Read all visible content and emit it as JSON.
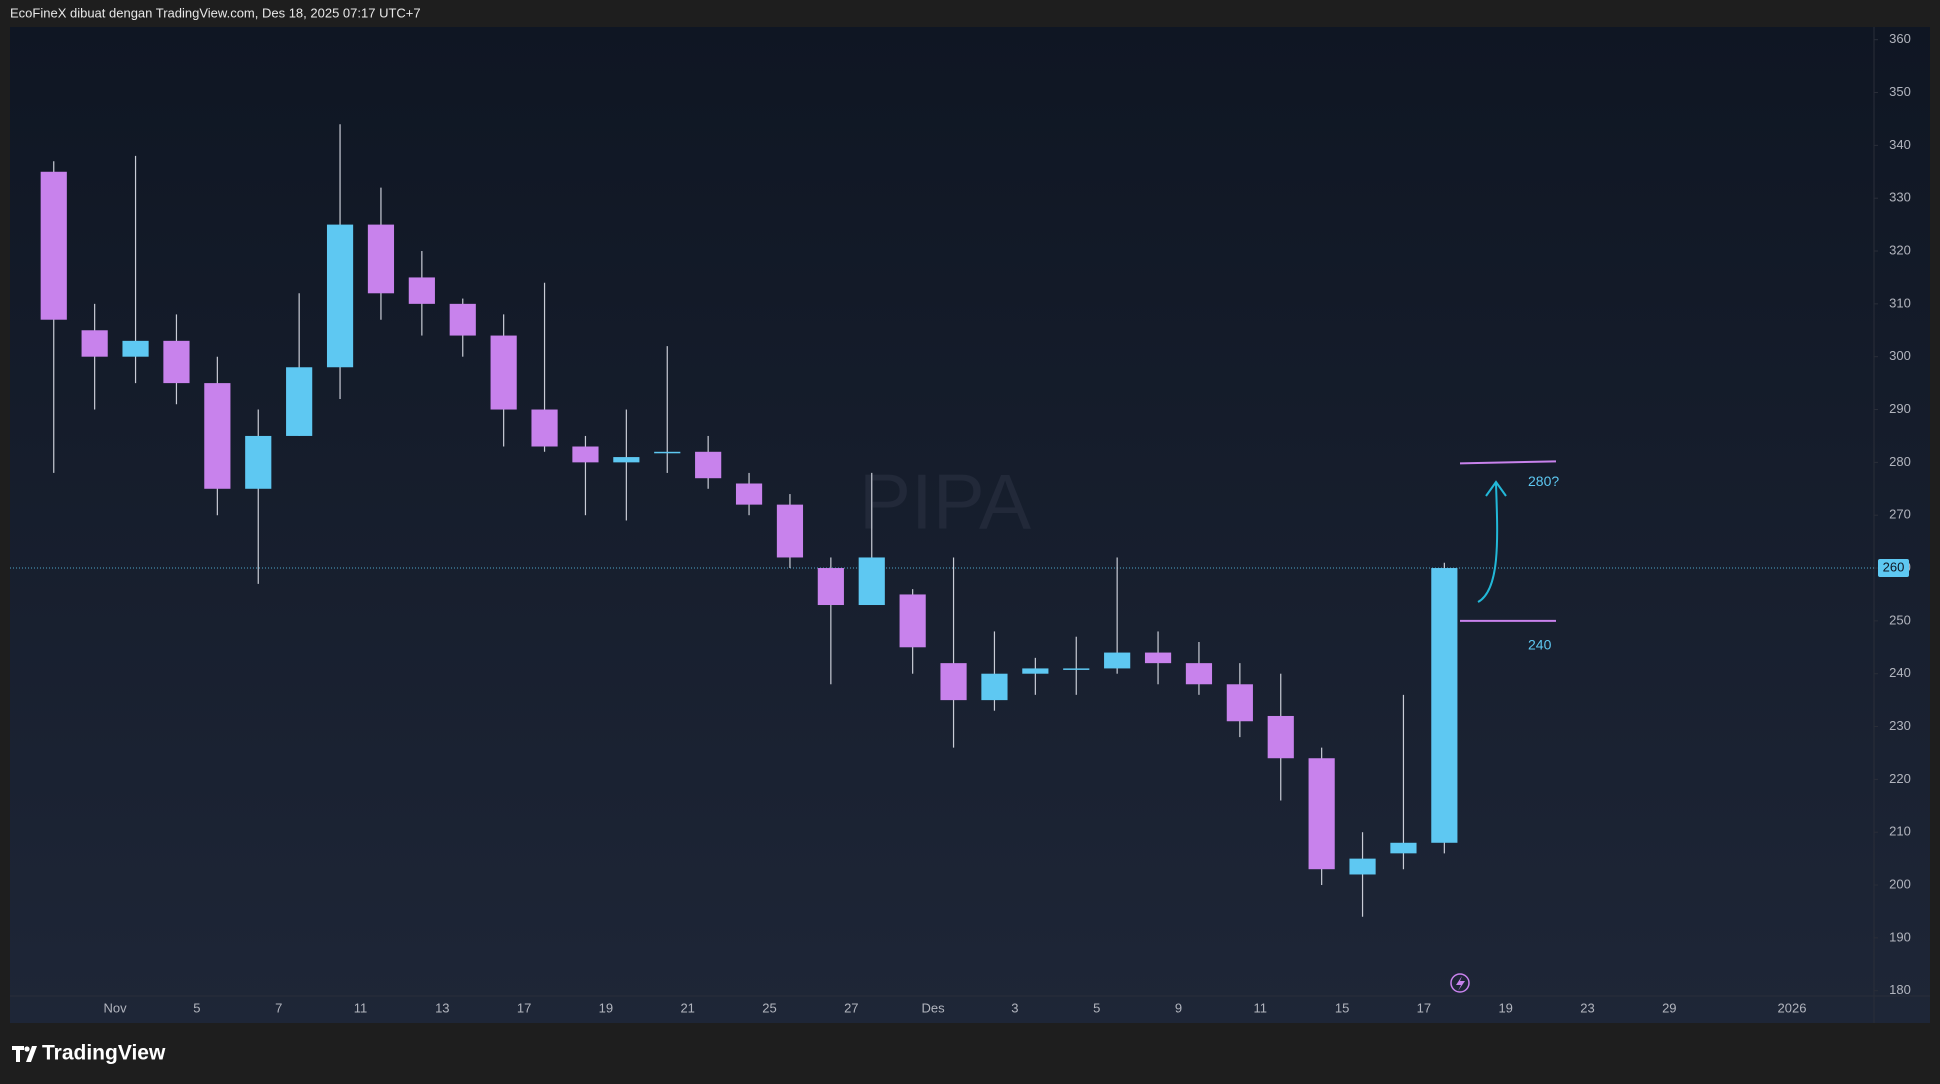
{
  "header": "EcoFineX dibuat dengan TradingView.com, Des 18, 2025 07:17 UTC+7",
  "brand": "TradingView",
  "chart_data": {
    "type": "candlestick",
    "watermark": "PIPA",
    "up_color": "#5ec8f2",
    "down_color": "#c882ec",
    "wick_color": "#c9ccd6",
    "categories": [
      null,
      null,
      "Nov",
      null,
      "5",
      null,
      "7",
      null,
      "11",
      null,
      "13",
      null,
      "17",
      null,
      "19",
      null,
      "21",
      null,
      "25",
      null,
      "27",
      null,
      "Des",
      null,
      "3",
      null,
      "5",
      null,
      "9",
      null,
      "11",
      null,
      "15",
      null,
      "17",
      null,
      "19",
      null,
      "23",
      null,
      "29",
      null,
      null,
      "2026"
    ],
    "open": [
      335,
      305,
      300,
      303,
      295,
      275,
      285,
      298,
      325,
      315,
      310,
      304,
      290,
      283,
      280,
      282,
      282,
      276,
      272,
      260,
      253,
      255,
      242,
      235,
      240,
      241,
      241,
      244,
      242,
      238,
      232,
      224,
      202,
      206,
      208,
      null,
      null,
      null,
      null,
      null,
      null,
      null,
      null,
      null
    ],
    "high": [
      337,
      310,
      338,
      308,
      300,
      290,
      312,
      344,
      332,
      320,
      311,
      308,
      314,
      285,
      290,
      302,
      285,
      278,
      274,
      262,
      278,
      256,
      262,
      248,
      243,
      247,
      262,
      248,
      246,
      242,
      240,
      226,
      210,
      236,
      261,
      null,
      null,
      null,
      null,
      null,
      null,
      null,
      null,
      null
    ],
    "low": [
      278,
      290,
      295,
      291,
      270,
      257,
      285,
      292,
      307,
      304,
      300,
      283,
      282,
      270,
      269,
      278,
      275,
      270,
      260,
      238,
      253,
      240,
      226,
      233,
      236,
      236,
      240,
      238,
      236,
      228,
      216,
      200,
      194,
      203,
      206,
      null,
      null,
      null,
      null,
      null,
      null,
      null,
      null,
      null
    ],
    "close": [
      307,
      300,
      303,
      295,
      275,
      285,
      298,
      325,
      312,
      310,
      304,
      290,
      283,
      280,
      281,
      282,
      277,
      272,
      262,
      253,
      262,
      245,
      235,
      240,
      241,
      241,
      244,
      242,
      238,
      231,
      224,
      203,
      205,
      208,
      260,
      null,
      null,
      null,
      null,
      null,
      null,
      null,
      null,
      null
    ],
    "ylim": [
      179,
      362.4
    ],
    "yticks": [
      180,
      190,
      200,
      210,
      220,
      230,
      240,
      250,
      260,
      270,
      280,
      290,
      300,
      310,
      320,
      330,
      340,
      350,
      360
    ],
    "last_price": 260,
    "last_price_color": "#5ec8f2",
    "levels": [
      280,
      250
    ],
    "level_color": "#c882ec",
    "annotations": [
      "280?",
      "240"
    ],
    "annotation_color": "#5ec8f2"
  }
}
